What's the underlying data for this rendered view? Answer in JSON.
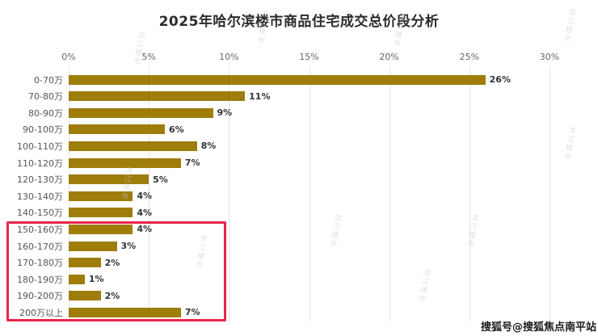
{
  "title": "2025年哈尔滨楼市商品住宅成交总价段分析",
  "attribution": "搜狐号@搜狐焦点南平站",
  "watermark_text": "龙江楼市",
  "colors": {
    "background": "#FFFFFF",
    "bar": "#9E7D0A",
    "highlight_border": "#E8254B",
    "grid": "#E4E4E4",
    "title_text": "#2B2B2B",
    "axis_text": "#666666",
    "category_text": "#555555",
    "value_text": "#333333",
    "watermark": "#C9C9C9"
  },
  "chart_data": {
    "type": "bar",
    "orientation": "horizontal",
    "title": "2025年哈尔滨楼市商品住宅成交总价段分析",
    "categories": [
      "0-70万",
      "70-80万",
      "80-90万",
      "90-100万",
      "100-110万",
      "110-120万",
      "120-130万",
      "130-140万",
      "140-150万",
      "150-160万",
      "160-170万",
      "170-180万",
      "180-190万",
      "190-200万",
      "200万以上"
    ],
    "values": [
      26,
      11,
      9,
      6,
      8,
      7,
      5,
      4,
      4,
      4,
      3,
      2,
      1,
      2,
      7
    ],
    "value_labels": [
      "26%",
      "11%",
      "9%",
      "6%",
      "8%",
      "7%",
      "5%",
      "4%",
      "4%",
      "4%",
      "3%",
      "2%",
      "1%",
      "2%",
      "7%"
    ],
    "x_ticks": [
      "0%",
      "5%",
      "10%",
      "15%",
      "20%",
      "25%",
      "30%"
    ],
    "x_tick_values": [
      0,
      5,
      10,
      15,
      20,
      25,
      30
    ],
    "xlim": [
      0,
      30
    ],
    "xlabel": "",
    "ylabel": "",
    "grid": true,
    "axis_position": "top",
    "legend": "none",
    "highlighted_categories": [
      "150-160万",
      "160-170万",
      "170-180万",
      "180-190万",
      "190-200万",
      "200万以上"
    ],
    "highlight_style": "red-box"
  }
}
